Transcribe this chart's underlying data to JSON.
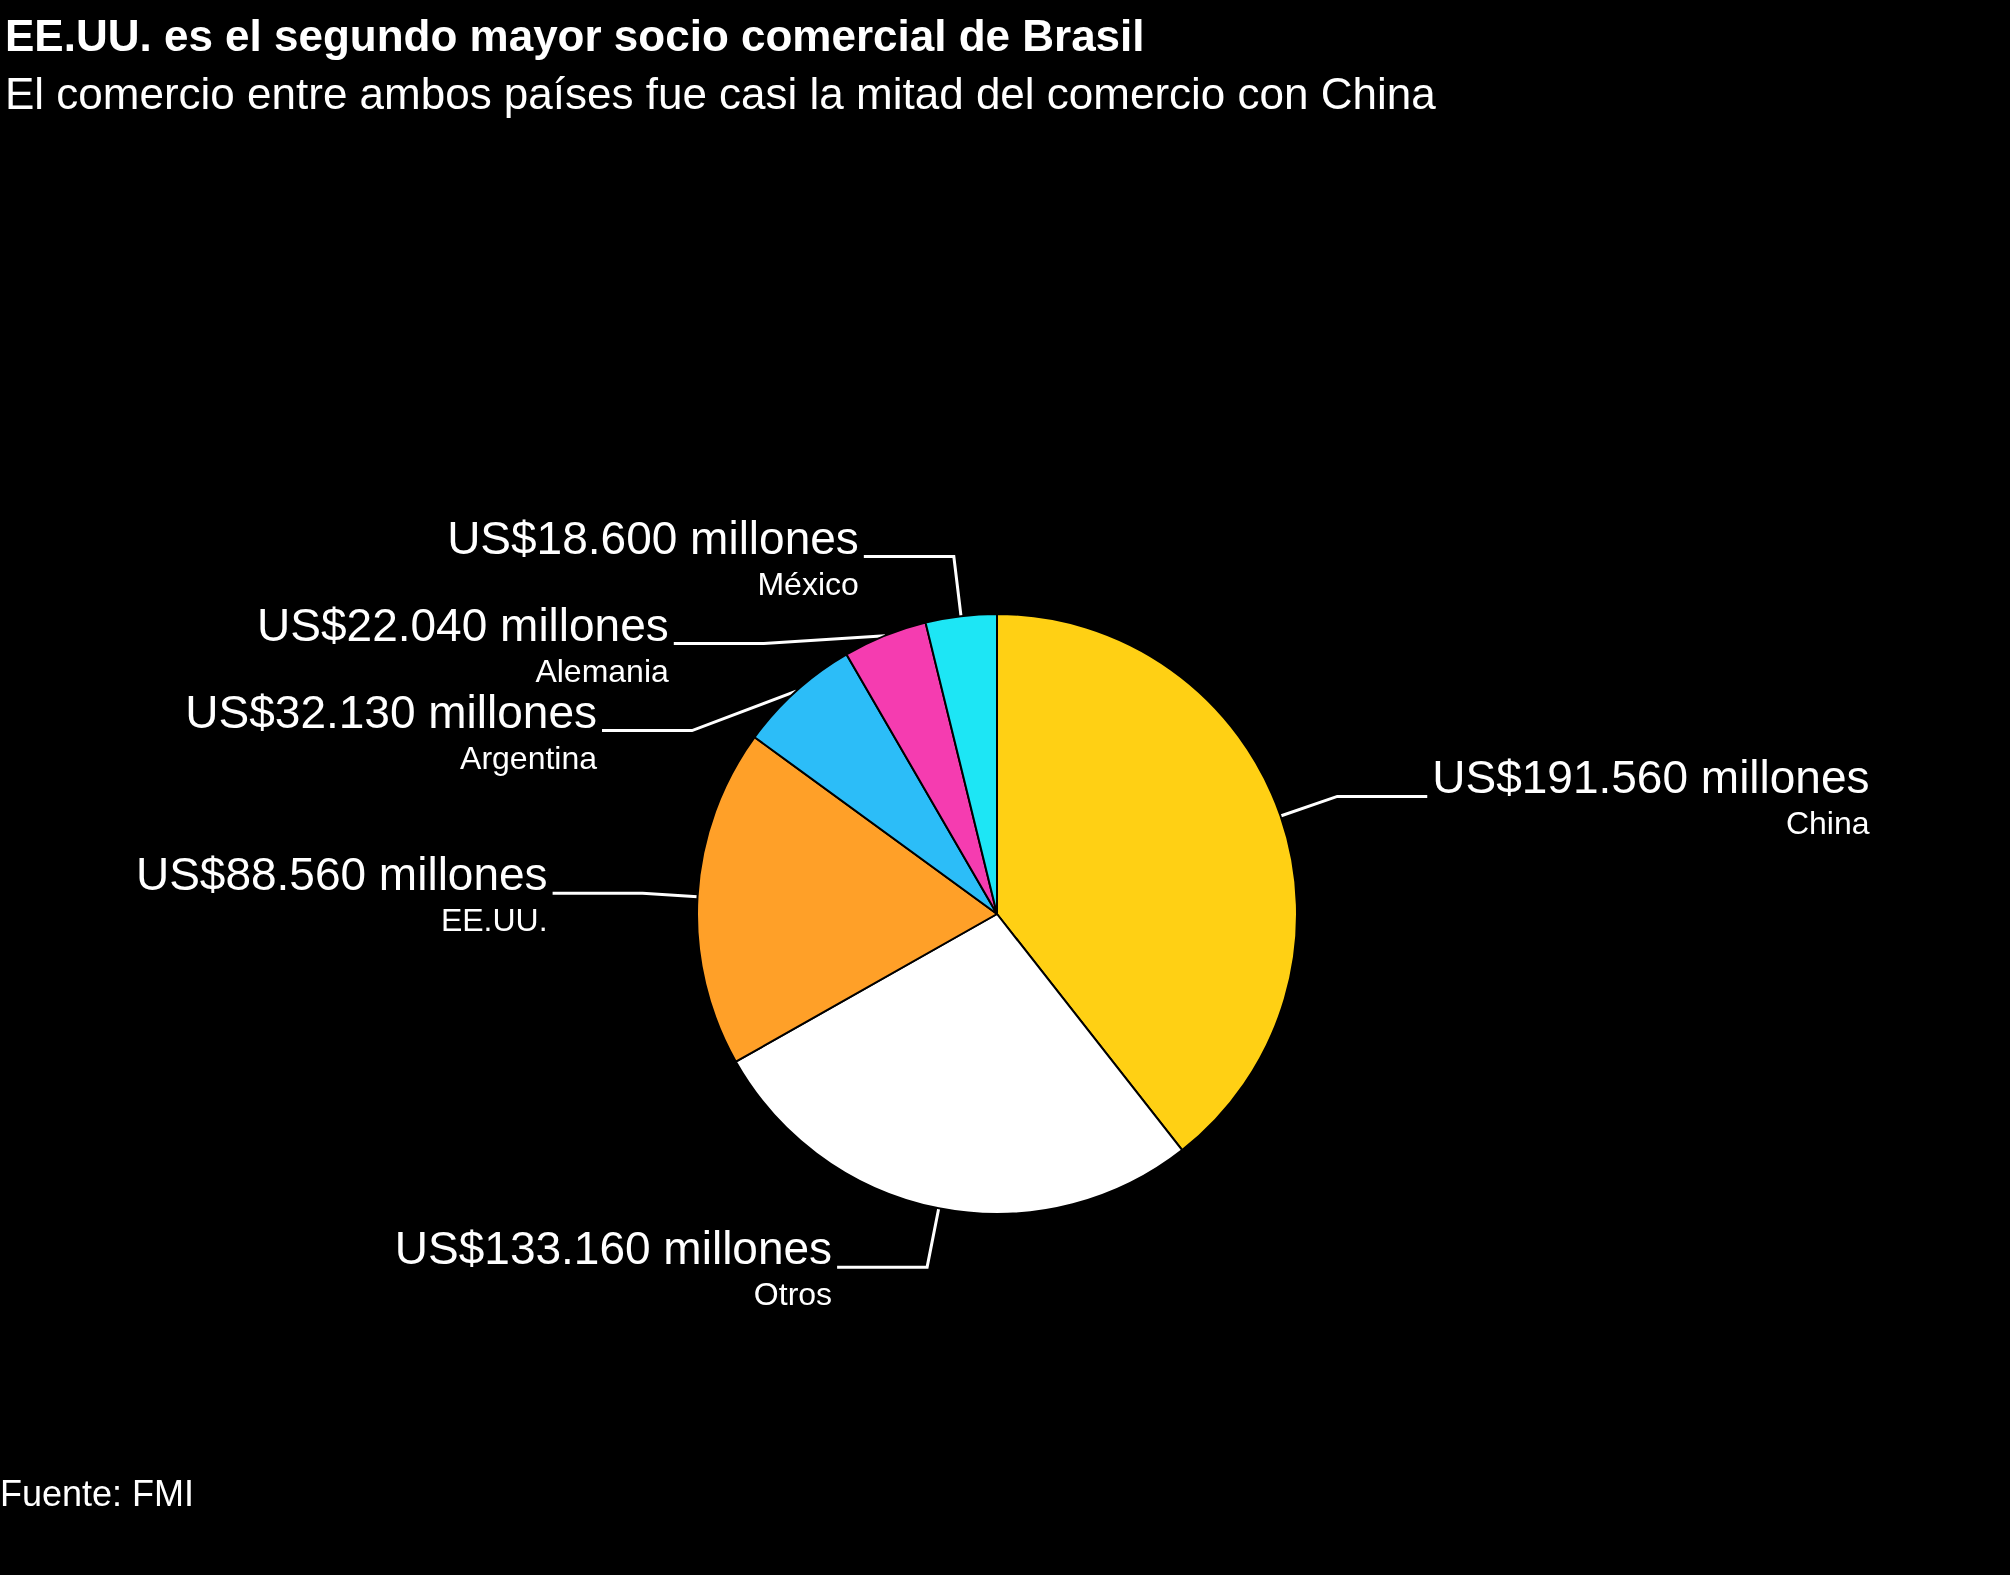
{
  "chart_data": {
    "type": "pie",
    "title": "EE.UU. es el segundo mayor socio comercial de Brasil",
    "subtitle": "El comercio entre ambos países fue casi la mitad del comercio con China",
    "categories": [
      "China",
      "Otros",
      "EE.UU.",
      "Argentina",
      "Alemania",
      "México"
    ],
    "values": [
      191560,
      133160,
      88560,
      32130,
      22040,
      18600
    ],
    "value_labels": [
      "US$191.560 millones",
      "US$133.160 millones",
      "US$88.560 millones",
      "US$32.130 millones",
      "US$22.040 millones",
      "US$18.600 millones"
    ],
    "colors": [
      "#ffd014",
      "#ffffff",
      "#ffa028",
      "#2cbdf8",
      "#f53cb0",
      "#1de6f5"
    ],
    "annotations": [
      "Fuente: FMI"
    ],
    "legend": false
  }
}
